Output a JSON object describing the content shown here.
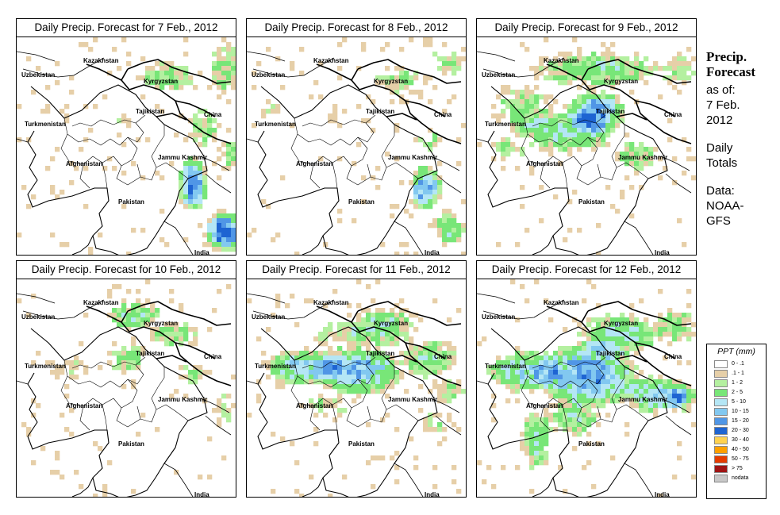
{
  "panels": [
    {
      "title": "Daily Precip. Forecast for  7 Feb., 2012",
      "day": 0
    },
    {
      "title": "Daily Precip. Forecast for  8 Feb., 2012",
      "day": 1
    },
    {
      "title": "Daily Precip. Forecast for  9 Feb., 2012",
      "day": 2
    },
    {
      "title": "Daily Precip. Forecast for  10 Feb., 2012",
      "day": 3
    },
    {
      "title": "Daily Precip. Forecast for  11 Feb., 2012",
      "day": 4
    },
    {
      "title": "Daily Precip. Forecast for  12 Feb., 2012",
      "day": 5
    }
  ],
  "countries": {
    "uzbekistan": "Uzbekistan",
    "kazakhstan": "Kazakhstan",
    "kyrgyzstan": "Kyrgyzstan",
    "tajikistan": "Tajikistan",
    "turkmenistan": "Turkmenistan",
    "china": "China",
    "jammu_kashmir": "Jammu Kashmir",
    "afghanistan": "Afghanistan",
    "pakistan": "Pakistan",
    "india": "India"
  },
  "side": {
    "title_line1": "Precip.",
    "title_line2": "Forecast",
    "asof_line1": "as of:",
    "asof_line2": "7 Feb.",
    "asof_line3": "2012",
    "daily_line1": "Daily",
    "daily_line2": "Totals",
    "data_line1": "Data:",
    "data_line2": "NOAA-",
    "data_line3": "GFS"
  },
  "legend": {
    "title": "PPT (mm)",
    "items": [
      {
        "label": "0 - .1",
        "color": "#ffffff"
      },
      {
        "label": ".1 - 1",
        "color": "#e6cfa8"
      },
      {
        "label": "1 - 2",
        "color": "#b4f0a0"
      },
      {
        "label": "2 - 5",
        "color": "#78e678"
      },
      {
        "label": "5 - 10",
        "color": "#b4e6f5"
      },
      {
        "label": "10 - 15",
        "color": "#82c8f0"
      },
      {
        "label": "15 - 20",
        "color": "#5096e6"
      },
      {
        "label": "20 - 30",
        "color": "#1e64d2"
      },
      {
        "label": "30 - 40",
        "color": "#ffd250"
      },
      {
        "label": "40 - 50",
        "color": "#ffa000"
      },
      {
        "label": "50 - 75",
        "color": "#e63c00"
      },
      {
        "label": "> 75",
        "color": "#a01414"
      },
      {
        "label": "nodata",
        "color": "#c8c8c8"
      }
    ]
  }
}
